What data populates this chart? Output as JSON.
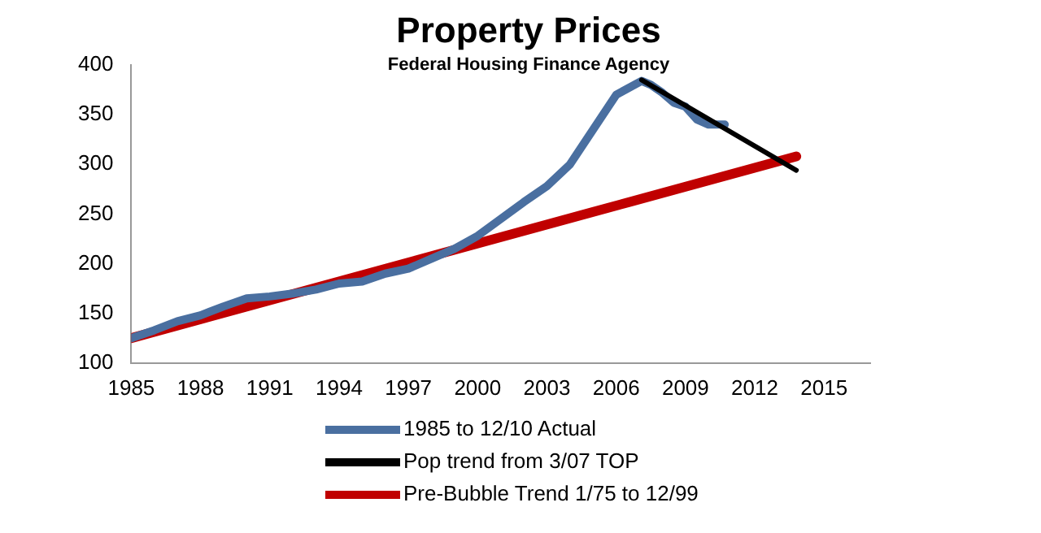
{
  "chart_data": {
    "type": "line",
    "title": "Property Prices",
    "subtitle": "Federal Housing Finance Agency",
    "xlim": [
      1985,
      2017
    ],
    "xticks": [
      1985,
      1988,
      1991,
      1994,
      1997,
      2000,
      2003,
      2006,
      2009,
      2012,
      2015
    ],
    "ylim": [
      100,
      400
    ],
    "yticks": [
      100,
      150,
      200,
      250,
      300,
      350,
      400
    ],
    "grid": false,
    "legend": "bottom",
    "marker": "none",
    "series": [
      {
        "name": "1985 to 12/10 Actual",
        "color": "#4a6fa0",
        "x": [
          1985,
          1986,
          1987,
          1988,
          1989,
          1990,
          1991,
          1992,
          1993,
          1994,
          1995,
          1996,
          1997,
          1998,
          1999,
          2000,
          2001,
          2002,
          2003,
          2004,
          2005,
          2006,
          2007.1,
          2007.5,
          2008,
          2008.5,
          2009,
          2009.5,
          2010,
          2010.7
        ],
        "values": [
          125,
          133,
          142,
          148,
          157,
          165,
          167,
          170,
          174,
          180,
          182,
          190,
          195,
          205,
          215,
          228,
          245,
          262,
          278,
          300,
          335,
          370,
          384,
          380,
          372,
          362,
          358,
          345,
          340,
          340
        ]
      },
      {
        "name": "Pop trend from 3/07 TOP",
        "color": "#000000",
        "x": [
          2007.1,
          2013.8
        ],
        "values": [
          385,
          294
        ]
      },
      {
        "name": "Pre-Bubble Trend 1/75 to 12/99",
        "color": "#c00000",
        "x": [
          1985,
          2013.8
        ],
        "values": [
          125,
          308
        ]
      }
    ]
  }
}
